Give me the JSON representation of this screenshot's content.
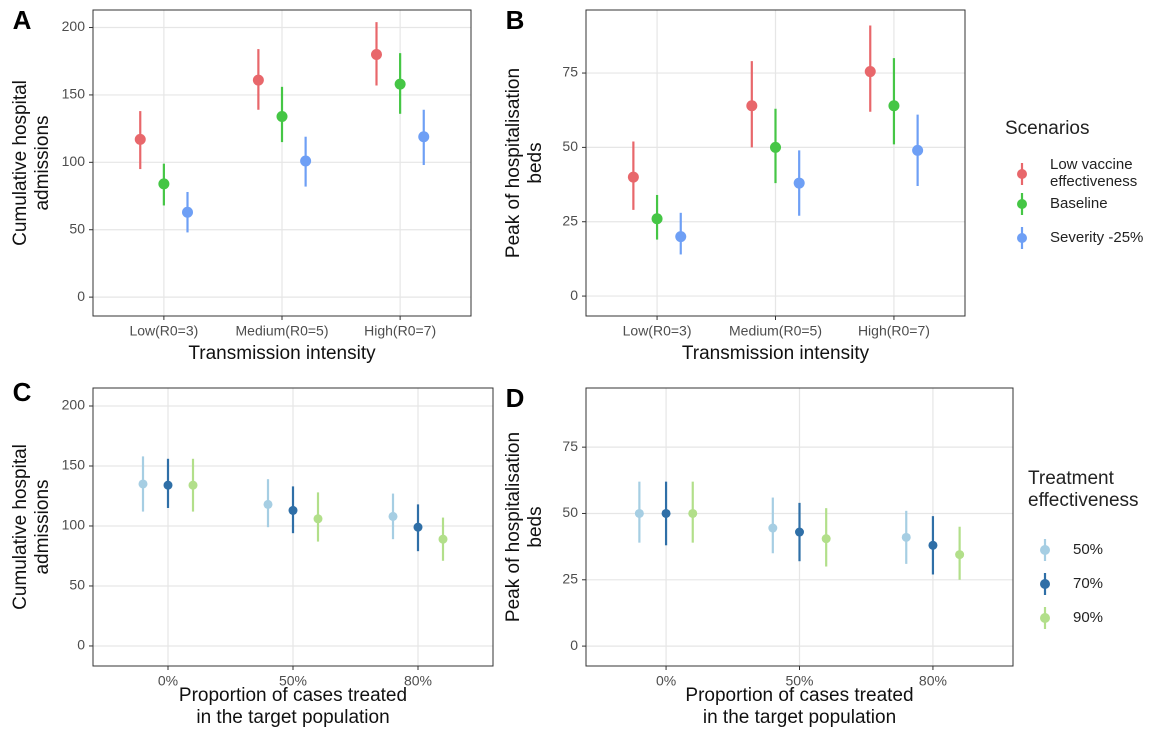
{
  "chart_data": [
    {
      "panel": "A",
      "type": "pointrange",
      "y_label": [
        "Cumulative hospital",
        "admissions"
      ],
      "x_label": [
        "Transmission intensity"
      ],
      "categories": [
        "Low(R0=3)",
        "Medium(R0=5)",
        "High(R0=7)"
      ],
      "ylim": [
        -14,
        213
      ],
      "yticks": [
        0,
        50,
        100,
        150,
        200
      ],
      "grid": true,
      "series": [
        {
          "color": "#e8676b",
          "values": [
            117,
            161,
            180
          ],
          "lower": [
            95,
            139,
            157
          ],
          "upper": [
            138,
            184,
            204
          ]
        },
        {
          "color": "#45c645",
          "values": [
            84,
            134,
            158
          ],
          "lower": [
            68,
            115,
            136
          ],
          "upper": [
            99,
            156,
            181
          ]
        },
        {
          "color": "#6e9ff5",
          "values": [
            63,
            101,
            119
          ],
          "lower": [
            48,
            82,
            98
          ],
          "upper": [
            78,
            119,
            139
          ]
        }
      ]
    },
    {
      "panel": "B",
      "type": "pointrange",
      "y_label": [
        "Peak of hospitalisation",
        "beds"
      ],
      "x_label": [
        "Transmission intensity"
      ],
      "categories": [
        "Low(R0=3)",
        "Medium(R0=5)",
        "High(R0=7)"
      ],
      "ylim": [
        -6.7,
        96.2
      ],
      "yticks": [
        0,
        25,
        50,
        75
      ],
      "grid": true,
      "legend_title": "Scenarios",
      "series": [
        {
          "name": "Low vaccine effectiveness",
          "color": "#e8676b",
          "values": [
            40,
            64,
            75.5
          ],
          "lower": [
            29,
            50,
            62
          ],
          "upper": [
            52,
            79,
            91
          ]
        },
        {
          "name": "Baseline",
          "color": "#45c645",
          "values": [
            26,
            50,
            64
          ],
          "lower": [
            19,
            38,
            51
          ],
          "upper": [
            34,
            63,
            80
          ]
        },
        {
          "name": "Severity -25%",
          "color": "#6e9ff5",
          "values": [
            20,
            38,
            49
          ],
          "lower": [
            14,
            27,
            37
          ],
          "upper": [
            28,
            49,
            61
          ]
        }
      ]
    },
    {
      "panel": "C",
      "type": "pointrange",
      "y_label": [
        "Cumulative hospital",
        "admissions"
      ],
      "x_label": [
        "Proportion of cases treated",
        "in the target population"
      ],
      "categories": [
        "0%",
        "50%",
        "80%"
      ],
      "ylim": [
        -16.7,
        215
      ],
      "yticks": [
        0,
        50,
        100,
        150,
        200
      ],
      "grid": true,
      "series": [
        {
          "color": "#a6cee3",
          "values": [
            135,
            118,
            108
          ],
          "lower": [
            112,
            99,
            89
          ],
          "upper": [
            158,
            139,
            127
          ]
        },
        {
          "color": "#2f6fa7",
          "values": [
            134,
            113,
            99
          ],
          "lower": [
            115,
            94,
            79
          ],
          "upper": [
            156,
            133,
            118
          ]
        },
        {
          "color": "#b2df8a",
          "values": [
            134,
            106,
            89
          ],
          "lower": [
            112,
            87,
            71
          ],
          "upper": [
            156,
            128,
            107
          ]
        }
      ]
    },
    {
      "panel": "D",
      "type": "pointrange",
      "y_label": [
        "Peak of hospitalisation",
        "beds"
      ],
      "x_label": [
        "Proportion of cases treated",
        "in the target population"
      ],
      "categories": [
        "0%",
        "50%",
        "80%"
      ],
      "ylim": [
        -7.5,
        97.3
      ],
      "yticks": [
        0,
        25,
        50,
        75
      ],
      "grid": true,
      "legend_title": "Treatment effectiveness",
      "series": [
        {
          "name": "50%",
          "color": "#a6cee3",
          "values": [
            50,
            44.5,
            41
          ],
          "lower": [
            39,
            35,
            31
          ],
          "upper": [
            62,
            56,
            51
          ]
        },
        {
          "name": "70%",
          "color": "#2f6fa7",
          "values": [
            50,
            43,
            38
          ],
          "lower": [
            38,
            32,
            27
          ],
          "upper": [
            62,
            54,
            49
          ]
        },
        {
          "name": "90%",
          "color": "#b2df8a",
          "values": [
            50,
            40.5,
            34.5
          ],
          "lower": [
            39,
            30,
            25
          ],
          "upper": [
            62,
            52,
            45
          ]
        }
      ]
    }
  ]
}
